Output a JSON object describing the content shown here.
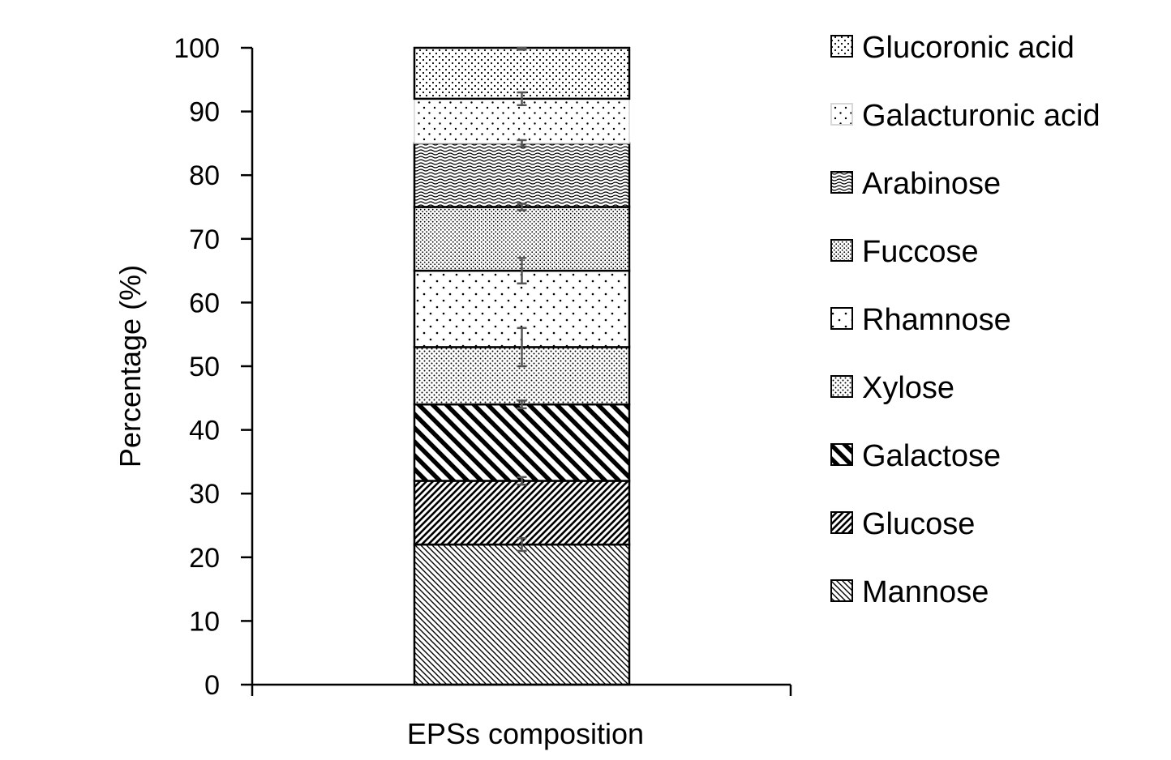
{
  "chart_data": {
    "type": "bar",
    "stacked": true,
    "categories": [
      "EPSs composition"
    ],
    "xlabel": "EPSs composition",
    "ylabel": "Percentage (%)",
    "ylim": [
      0,
      100
    ],
    "yticks": [
      0,
      10,
      20,
      30,
      40,
      50,
      60,
      70,
      80,
      90,
      100
    ],
    "grid": false,
    "legend_position": "right",
    "series": [
      {
        "name": "Mannose",
        "values": [
          22
        ],
        "error": [
          1
        ],
        "pattern": "diag-dense"
      },
      {
        "name": "Glucose",
        "values": [
          10
        ],
        "error": [
          0.6
        ],
        "pattern": "diag-medium"
      },
      {
        "name": "Galactose",
        "values": [
          12
        ],
        "error": [
          0.6
        ],
        "pattern": "diag-bold"
      },
      {
        "name": "Xylose",
        "values": [
          9
        ],
        "error": [
          3
        ],
        "pattern": "dots-medium"
      },
      {
        "name": "Rhamnose",
        "values": [
          12
        ],
        "error": [
          2
        ],
        "pattern": "dots-sparse"
      },
      {
        "name": "Fuccose",
        "values": [
          10
        ],
        "error": [
          0.5
        ],
        "pattern": "dots-dense"
      },
      {
        "name": "Arabinose",
        "values": [
          10
        ],
        "error": [
          0.5
        ],
        "pattern": "waves"
      },
      {
        "name": "Galacturonic acid",
        "values": [
          7
        ],
        "error": [
          1
        ],
        "pattern": "dots-grid"
      },
      {
        "name": "Glucoronic acid",
        "values": [
          8
        ],
        "error": [
          0.3
        ],
        "pattern": "dots-fine"
      }
    ],
    "colors": {
      "stroke": "#000000",
      "error_bar": "#555555",
      "segment_outline_light": "#d8d8d8"
    }
  }
}
